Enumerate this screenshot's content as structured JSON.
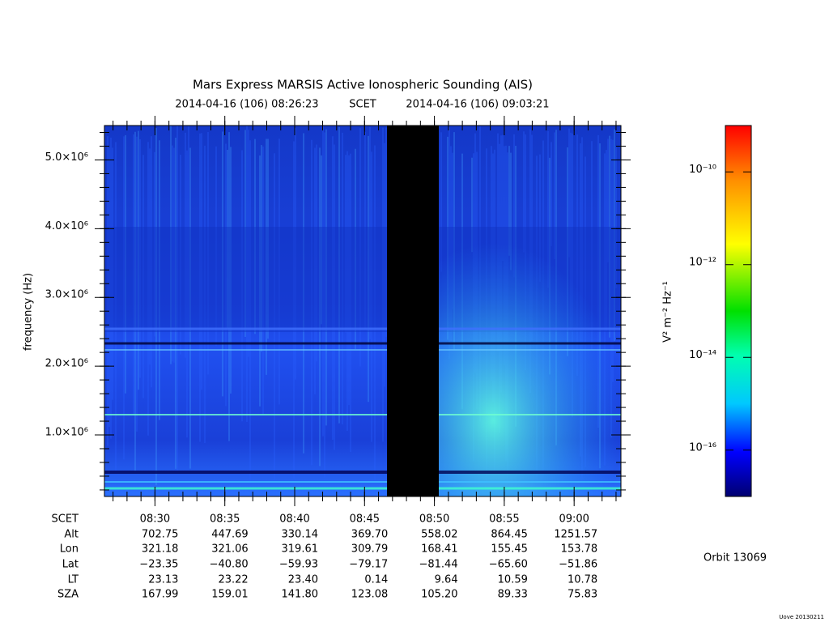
{
  "chart_data": {
    "type": "spectrogram",
    "title": "Mars Express MARSIS Active Ionospheric Sounding (AIS)",
    "time_start": "2014-04-16 (106) 08:26:23",
    "time_frame": "SCET",
    "time_end": "2014-04-16 (106) 09:03:21",
    "y_label": "frequency (Hz)",
    "ylim": [
      105000,
      5500000
    ],
    "yticks": [
      {
        "value": 1000000,
        "label": "1.0×10⁶"
      },
      {
        "value": 2000000,
        "label": "2.0×10⁶"
      },
      {
        "value": 3000000,
        "label": "3.0×10⁶"
      },
      {
        "value": 4000000,
        "label": "4.0×10⁶"
      },
      {
        "value": 5000000,
        "label": "5.0×10⁶"
      }
    ],
    "xticks": [
      "08:30",
      "08:35",
      "08:40",
      "08:45",
      "08:50",
      "08:55",
      "09:00"
    ],
    "ephemeris": {
      "row_labels": [
        "SCET",
        "Alt",
        "Lon",
        "Lat",
        "LT",
        "SZA"
      ],
      "rows": [
        [
          "702.75",
          "447.69",
          "330.14",
          "369.70",
          "558.02",
          "864.45",
          "1251.57"
        ],
        [
          "321.18",
          "321.06",
          "319.61",
          "309.79",
          "168.41",
          "155.45",
          "153.78"
        ],
        [
          "−23.35",
          "−40.80",
          "−59.93",
          "−79.17",
          "−81.44",
          "−65.60",
          "−51.86"
        ],
        [
          "23.13",
          "23.22",
          "23.40",
          "0.14",
          "9.64",
          "10.59",
          "10.78"
        ],
        [
          "167.99",
          "159.01",
          "141.80",
          "123.08",
          "105.20",
          "89.33",
          "75.83"
        ]
      ]
    },
    "colorbar": {
      "label": "V² m⁻² Hz⁻¹",
      "log_scale": true,
      "clim": [
        1e-17,
        1e-09
      ],
      "ticks": [
        {
          "value": 1e-10,
          "label": "10⁻¹⁰"
        },
        {
          "value": 1e-12,
          "label": "10⁻¹²"
        },
        {
          "value": 1e-14,
          "label": "10⁻¹⁴"
        },
        {
          "value": 1e-16,
          "label": "10⁻¹⁶"
        }
      ]
    },
    "orbit": "Orbit 13069",
    "footer": "Uove 20130211"
  }
}
